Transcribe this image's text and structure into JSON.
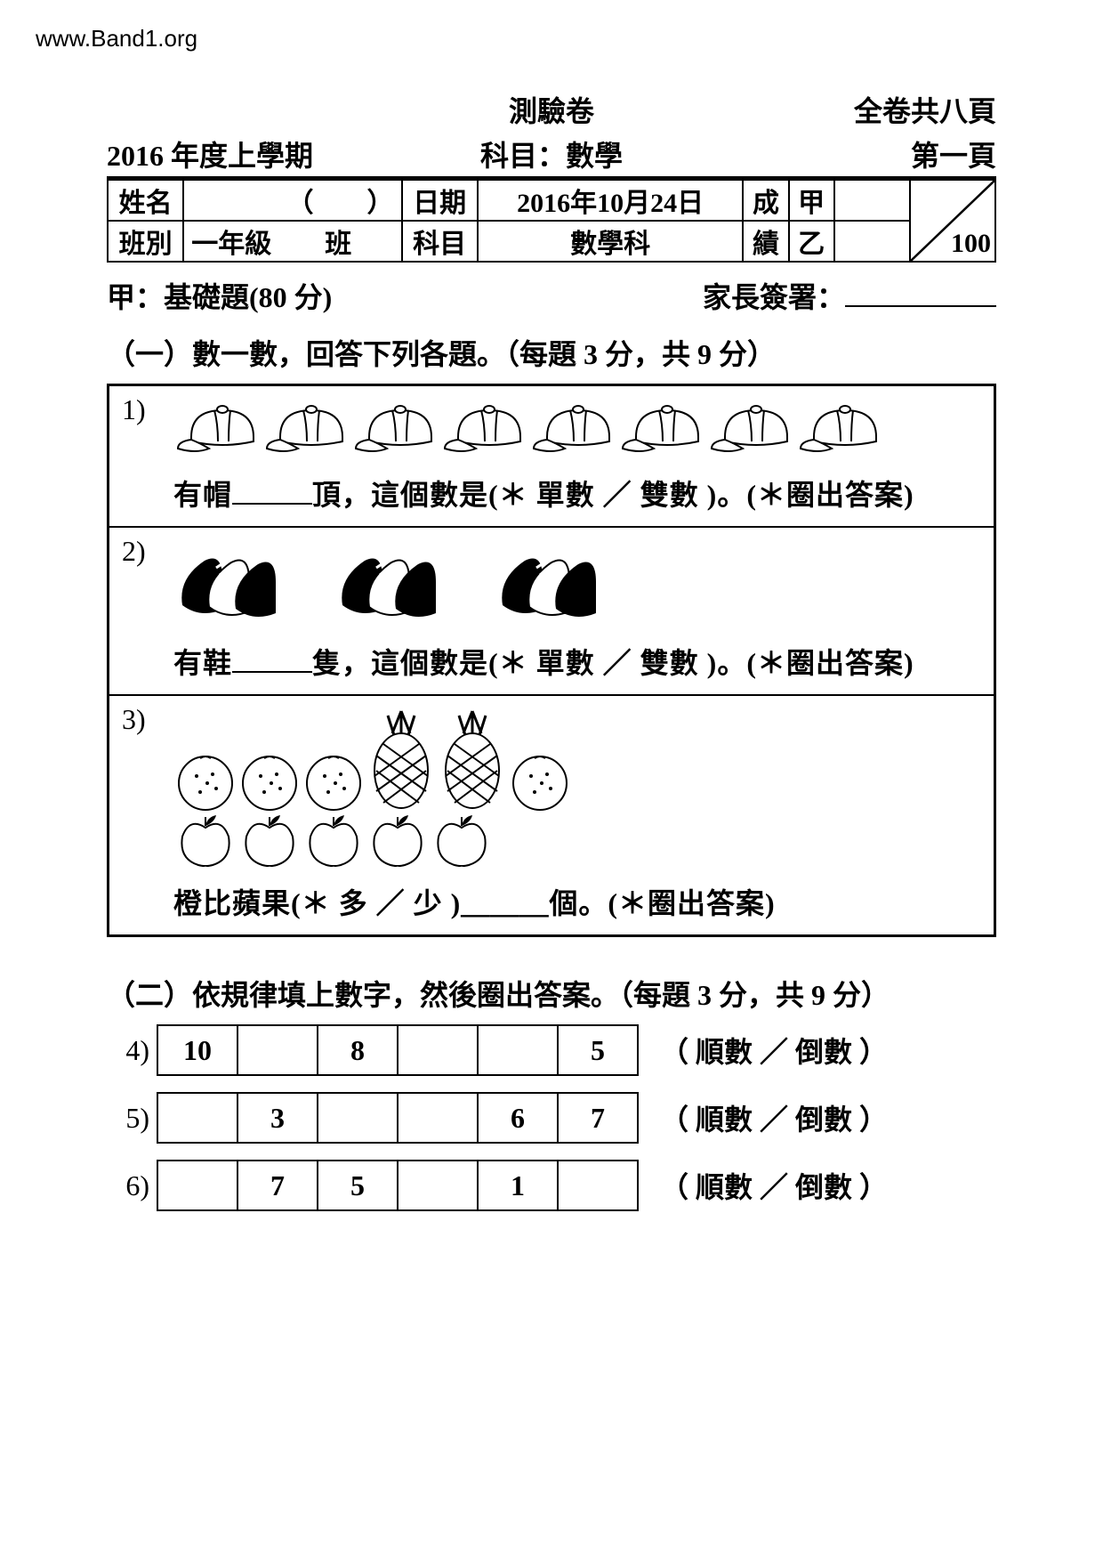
{
  "watermark": "www.Band1.org",
  "header": {
    "title_center_1": "測驗卷",
    "title_right_1": "全卷共八頁",
    "title_left_2": "2016 年度上學期",
    "title_center_2": "科目：數學",
    "title_right_2": "第一頁"
  },
  "info_table": {
    "row1": {
      "name_label": "姓名",
      "name_value": "（　　）",
      "date_label": "日期",
      "date_value": "2016年10月24日",
      "score_label1": "成",
      "grade_a": "甲"
    },
    "row2": {
      "class_label": "班別",
      "class_value": "一年級　　班",
      "subject_label": "科目",
      "subject_value": "數學科",
      "score_label2": "績",
      "grade_b": "乙"
    },
    "max_score": "100"
  },
  "section_a": {
    "left": "甲：基礎題(80 分)",
    "right_label": "家長簽署："
  },
  "q1": {
    "heading": "（一）數一數，回答下列各題。（每題 3 分，共 9 分）",
    "items": [
      {
        "num": "1)",
        "icon": "cap",
        "icon_count": 8,
        "text_before": "有帽",
        "text_after": "頂，這個數是(＊ 單數 ／ 雙數 )。(＊圈出答案)"
      },
      {
        "num": "2)",
        "icon": "shoes",
        "icon_count": 3,
        "text_before": "有鞋",
        "text_after": "隻，這個數是(＊ 單數 ／ 雙數 )。(＊圈出答案)"
      },
      {
        "num": "3)",
        "icon": "fruits",
        "oranges": 4,
        "pineapples": 2,
        "apples": 5,
        "text": "橙比蘋果(＊ 多 ／ 少 )＿＿＿個。(＊圈出答案)"
      }
    ]
  },
  "q2": {
    "heading": "（二）依規律填上數字，然後圈出答案。（每題 3 分，共 9 分）",
    "rows": [
      {
        "num": "4)",
        "cells": [
          "10",
          "",
          "8",
          "",
          "",
          "5"
        ],
        "after": "（ 順數 ／ 倒數 ）"
      },
      {
        "num": "5)",
        "cells": [
          "",
          "3",
          "",
          "",
          "6",
          "7"
        ],
        "after": "（ 順數 ／ 倒數 ）"
      },
      {
        "num": "6)",
        "cells": [
          "",
          "7",
          "5",
          "",
          "1",
          ""
        ],
        "after": "（ 順數 ／ 倒數 ）"
      }
    ]
  },
  "colors": {
    "text": "#000000",
    "bg": "#ffffff",
    "border": "#000000"
  }
}
